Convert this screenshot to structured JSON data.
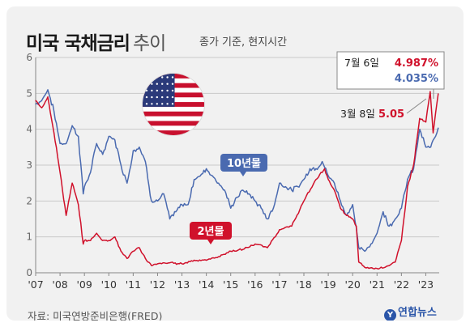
{
  "title": "미국 국채금리",
  "title_suffix": "추이",
  "subtitle": "종가 기준, 현지시간",
  "source": "자료: 미국연방준비은행(FRED)",
  "logo": "연합뉴스",
  "annotations": {
    "top_date": "7월 6일",
    "top_red": "4.987%",
    "top_blue": "4.035%",
    "mid_date": "3월 8일",
    "mid_red": "5.05"
  },
  "colors": {
    "ten_year": "#4a6ab0",
    "two_year": "#d0112b",
    "axis": "#999999"
  },
  "chart_data": {
    "type": "line",
    "title": "미국 국채금리 추이",
    "ylim": [
      0,
      6
    ],
    "yticks": [
      0,
      1,
      2,
      3,
      4,
      5,
      6
    ],
    "xticks": [
      "'07",
      "'08",
      "'09",
      "'10",
      "'11",
      "'12",
      "'13",
      "'14",
      "'15",
      "'16",
      "'17",
      "'18",
      "'19",
      "'20",
      "'21",
      "'22",
      "'23"
    ],
    "series": [
      {
        "name": "10년물",
        "color": "#4a6ab0",
        "x": [
          2007.0,
          2007.25,
          2007.5,
          2007.75,
          2008.0,
          2008.25,
          2008.5,
          2008.75,
          2008.95,
          2009.0,
          2009.25,
          2009.5,
          2009.75,
          2010.0,
          2010.25,
          2010.5,
          2010.75,
          2011.0,
          2011.25,
          2011.5,
          2011.75,
          2012.0,
          2012.25,
          2012.5,
          2012.75,
          2013.0,
          2013.25,
          2013.5,
          2013.75,
          2014.0,
          2014.25,
          2014.5,
          2014.75,
          2015.0,
          2015.25,
          2015.5,
          2015.75,
          2016.0,
          2016.25,
          2016.5,
          2016.75,
          2017.0,
          2017.25,
          2017.5,
          2017.75,
          2018.0,
          2018.25,
          2018.5,
          2018.75,
          2019.0,
          2019.25,
          2019.5,
          2019.75,
          2020.0,
          2020.25,
          2020.5,
          2020.75,
          2021.0,
          2021.25,
          2021.5,
          2021.75,
          2022.0,
          2022.25,
          2022.5,
          2022.75,
          2023.0,
          2023.2,
          2023.4,
          2023.51
        ],
        "values": [
          4.7,
          4.8,
          5.1,
          4.5,
          3.6,
          3.6,
          4.1,
          3.8,
          2.2,
          2.4,
          2.8,
          3.6,
          3.3,
          3.8,
          3.7,
          3.0,
          2.5,
          3.4,
          3.5,
          3.1,
          2.0,
          2.0,
          2.2,
          1.5,
          1.7,
          1.9,
          1.9,
          2.6,
          2.7,
          2.9,
          2.7,
          2.5,
          2.3,
          1.8,
          2.1,
          2.3,
          2.2,
          2.0,
          1.8,
          1.5,
          1.8,
          2.5,
          2.4,
          2.3,
          2.4,
          2.6,
          2.9,
          2.9,
          3.1,
          2.7,
          2.5,
          2.0,
          1.6,
          1.9,
          0.7,
          0.6,
          0.8,
          1.1,
          1.7,
          1.3,
          1.5,
          1.8,
          2.6,
          2.9,
          4.0,
          3.5,
          3.5,
          3.8,
          4.035
        ]
      },
      {
        "name": "2년물",
        "color": "#d0112b",
        "x": [
          2007.0,
          2007.25,
          2007.5,
          2007.75,
          2008.0,
          2008.25,
          2008.5,
          2008.75,
          2008.95,
          2009.0,
          2009.25,
          2009.5,
          2009.75,
          2010.0,
          2010.25,
          2010.5,
          2010.75,
          2011.0,
          2011.25,
          2011.5,
          2011.75,
          2012.0,
          2012.5,
          2013.0,
          2013.5,
          2014.0,
          2014.5,
          2015.0,
          2015.5,
          2016.0,
          2016.5,
          2017.0,
          2017.5,
          2018.0,
          2018.5,
          2018.85,
          2019.0,
          2019.25,
          2019.5,
          2019.75,
          2020.0,
          2020.15,
          2020.25,
          2020.5,
          2021.0,
          2021.5,
          2021.75,
          2022.0,
          2022.25,
          2022.5,
          2022.75,
          2023.0,
          2023.18,
          2023.3,
          2023.51
        ],
        "values": [
          4.8,
          4.6,
          4.9,
          3.9,
          2.8,
          1.6,
          2.5,
          1.9,
          0.8,
          0.9,
          0.9,
          1.1,
          0.9,
          0.9,
          1.0,
          0.6,
          0.4,
          0.6,
          0.7,
          0.4,
          0.2,
          0.25,
          0.28,
          0.25,
          0.35,
          0.35,
          0.45,
          0.6,
          0.65,
          0.8,
          0.7,
          1.2,
          1.3,
          2.0,
          2.6,
          2.9,
          2.6,
          2.3,
          1.8,
          1.6,
          1.5,
          1.3,
          0.3,
          0.15,
          0.12,
          0.2,
          0.3,
          0.9,
          2.4,
          3.0,
          4.3,
          4.2,
          5.05,
          3.9,
          4.987
        ]
      }
    ]
  }
}
